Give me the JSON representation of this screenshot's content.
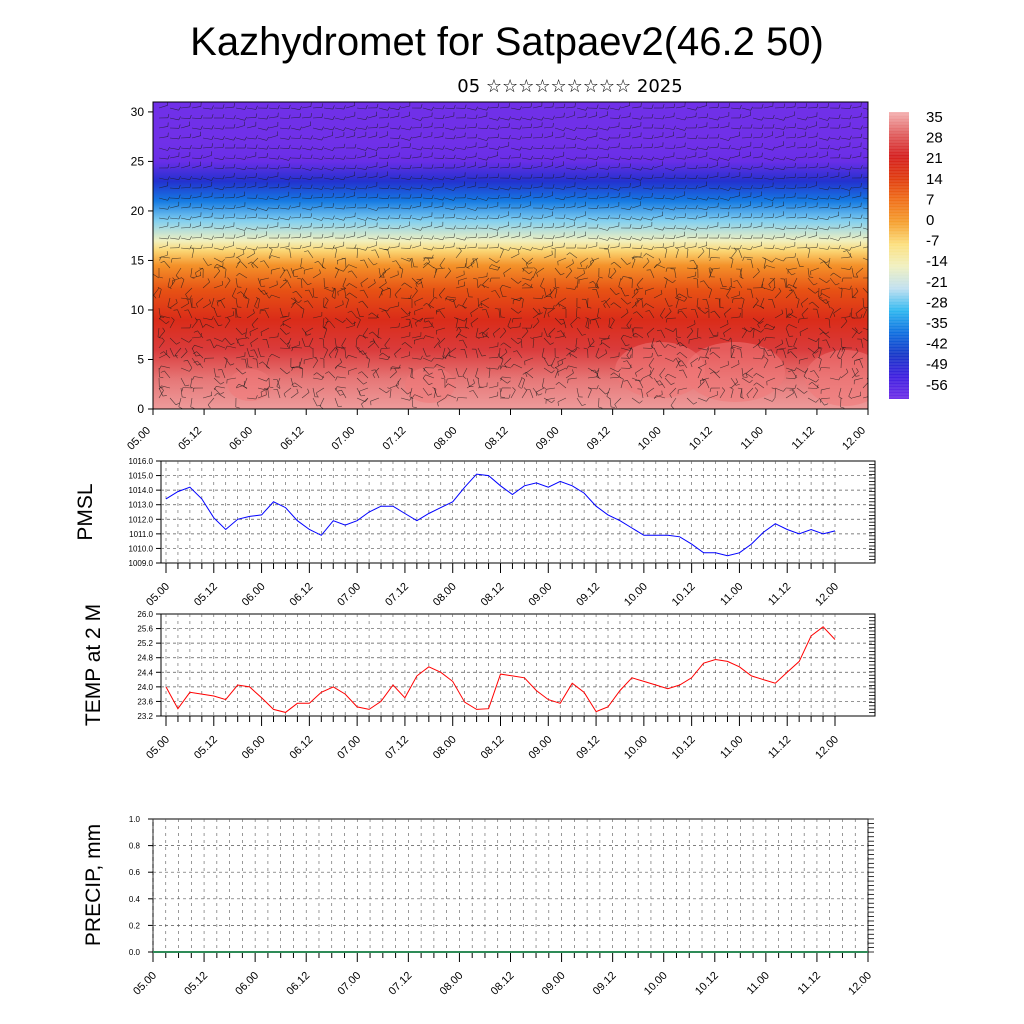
{
  "header": {
    "title": "Kazhydromet for Satpaev2(46.2 50)",
    "subtitle": "05 ☆☆☆☆☆☆☆☆☆ 2025"
  },
  "time_ticks": [
    "05.00",
    "05.12",
    "06.00",
    "06.12",
    "07.00",
    "07.12",
    "08.00",
    "08.12",
    "09.00",
    "09.12",
    "10.00",
    "10.12",
    "11.00",
    "11.12",
    "12.00"
  ],
  "chart_data": [
    {
      "id": "cross-section",
      "type": "heatmap",
      "title": "",
      "xlabel": "",
      "ylabel": "",
      "x_ticks": [
        "05.00",
        "05.12",
        "06.00",
        "06.12",
        "07.00",
        "07.12",
        "08.00",
        "08.12",
        "09.00",
        "09.12",
        "10.00",
        "10.12",
        "11.00",
        "11.12",
        "12.00"
      ],
      "y_ticks": [
        0,
        5,
        10,
        15,
        20,
        25,
        30
      ],
      "ylim": [
        0,
        31
      ],
      "colorbar": {
        "labels": [
          "35",
          "28",
          "21",
          "14",
          "7",
          "0",
          "-7",
          "-14",
          "-21",
          "-28",
          "-35",
          "-42",
          "-49",
          "-56"
        ],
        "colors": [
          "#f4b2b2",
          "#e06060",
          "#d52020",
          "#e03c10",
          "#f0701a",
          "#f5a030",
          "#fce080",
          "#f0f0c0",
          "#c0e0f0",
          "#30b8f0",
          "#1070e0",
          "#1838c8",
          "#4020e0",
          "#7030e8"
        ]
      },
      "temperature_profile": [
        {
          "height": 0,
          "value": 33
        },
        {
          "height": 3,
          "value": 30
        },
        {
          "height": 6,
          "value": 24
        },
        {
          "height": 9,
          "value": 18
        },
        {
          "height": 12,
          "value": 11
        },
        {
          "height": 14.5,
          "value": 2
        },
        {
          "height": 16,
          "value": -6
        },
        {
          "height": 17,
          "value": -14
        },
        {
          "height": 19,
          "value": -24
        },
        {
          "height": 21,
          "value": -34
        },
        {
          "height": 23,
          "value": -44
        },
        {
          "height": 25,
          "value": -55
        },
        {
          "height": 27,
          "value": -60
        },
        {
          "height": 31,
          "value": -62
        }
      ]
    },
    {
      "id": "pmsl",
      "type": "line",
      "ylabel": "PMSL",
      "ylim": [
        1009,
        1016
      ],
      "y_ticks": [
        "1009.0",
        "1010.0",
        "1011.0",
        "1012.0",
        "1013.0",
        "1014.0",
        "1015.0",
        "1016.0"
      ],
      "x_ticks": [
        "05.00",
        "05.12",
        "06.00",
        "06.12",
        "07.00",
        "07.12",
        "08.00",
        "08.12",
        "09.00",
        "09.12",
        "10.00",
        "10.12",
        "11.00",
        "11.12",
        "12.00"
      ],
      "series": [
        {
          "color": "#0000ff",
          "x": [
            0,
            3,
            6,
            9,
            12,
            15,
            18,
            21,
            24,
            27,
            30,
            33,
            36,
            39,
            42,
            45,
            48,
            51,
            54,
            57,
            60,
            63,
            66,
            69,
            72,
            75,
            78,
            81,
            84,
            87,
            90,
            93,
            96,
            99,
            102,
            105,
            108,
            111,
            114,
            117,
            120,
            123,
            126,
            129,
            132,
            135,
            138,
            141,
            144,
            147,
            150,
            153,
            156,
            159,
            162,
            165,
            168
          ],
          "values": [
            1013.4,
            1013.9,
            1014.2,
            1013.4,
            1012.1,
            1011.3,
            1012.0,
            1012.2,
            1012.3,
            1013.2,
            1012.8,
            1011.9,
            1011.3,
            1010.9,
            1011.9,
            1011.6,
            1011.9,
            1012.5,
            1012.9,
            1012.9,
            1012.4,
            1011.9,
            1012.4,
            1012.8,
            1013.2,
            1014.2,
            1015.1,
            1015.0,
            1014.3,
            1013.7,
            1014.3,
            1014.5,
            1014.2,
            1014.6,
            1014.3,
            1013.8,
            1012.9,
            1012.3,
            1011.9,
            1011.4,
            1010.9,
            1010.9,
            1010.9,
            1010.8,
            1010.3,
            1009.7,
            1009.7,
            1009.5,
            1009.7,
            1010.3,
            1011.1,
            1011.7,
            1011.3,
            1011.0,
            1011.3,
            1011.0,
            1011.2
          ]
        }
      ]
    },
    {
      "id": "temp-2m",
      "type": "line",
      "ylabel": "TEMP at 2 M",
      "ylim": [
        23.2,
        26.0
      ],
      "y_ticks": [
        "23.2",
        "23.6",
        "24.0",
        "24.4",
        "24.8",
        "25.2",
        "25.6",
        "26.0"
      ],
      "x_ticks": [
        "05.00",
        "05.12",
        "06.00",
        "06.12",
        "07.00",
        "07.12",
        "08.00",
        "08.12",
        "09.00",
        "09.12",
        "10.00",
        "10.12",
        "11.00",
        "11.12",
        "12.00"
      ],
      "series": [
        {
          "color": "#ff0000",
          "x": [
            0,
            3,
            6,
            9,
            12,
            15,
            18,
            21,
            24,
            27,
            30,
            33,
            36,
            39,
            42,
            45,
            48,
            51,
            54,
            57,
            60,
            63,
            66,
            69,
            72,
            75,
            78,
            81,
            84,
            87,
            90,
            93,
            96,
            99,
            102,
            105,
            108,
            111,
            114,
            117,
            120,
            123,
            126,
            129,
            132,
            135,
            138,
            141,
            144,
            147,
            150,
            153,
            156,
            159,
            162,
            165,
            168
          ],
          "values": [
            24.0,
            23.4,
            23.85,
            23.8,
            23.75,
            23.65,
            24.05,
            24.0,
            23.7,
            23.38,
            23.3,
            23.55,
            23.55,
            23.85,
            24.0,
            23.8,
            23.45,
            23.38,
            23.6,
            24.05,
            23.7,
            24.3,
            24.55,
            24.4,
            24.15,
            23.58,
            23.38,
            23.4,
            24.35,
            24.3,
            24.25,
            23.9,
            23.65,
            23.55,
            24.1,
            23.85,
            23.32,
            23.45,
            23.9,
            24.25,
            24.15,
            24.05,
            23.95,
            24.05,
            24.25,
            24.65,
            24.75,
            24.7,
            24.55,
            24.3,
            24.2,
            24.1,
            24.4,
            24.7,
            25.4,
            25.65,
            25.3
          ]
        }
      ]
    },
    {
      "id": "precip",
      "type": "bar",
      "ylabel": "PRECIP, mm",
      "ylim": [
        0,
        1
      ],
      "y_ticks": [
        "0.0",
        "0.2",
        "0.4",
        "0.6",
        "0.8",
        "1.0"
      ],
      "x_ticks": [
        "05.00",
        "05.12",
        "06.00",
        "06.12",
        "07.00",
        "07.12",
        "08.00",
        "08.12",
        "09.00",
        "09.12",
        "10.00",
        "10.12",
        "11.00",
        "11.12",
        "12.00"
      ],
      "series": [
        {
          "color": "#2e8b57",
          "values": []
        }
      ]
    }
  ]
}
